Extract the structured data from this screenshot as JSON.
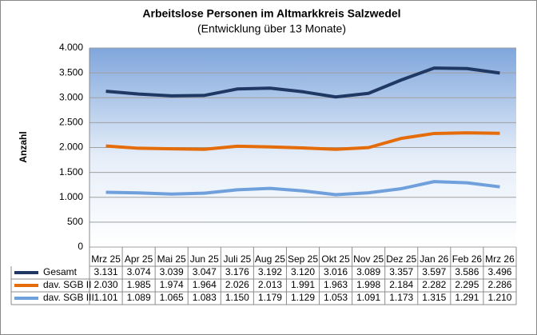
{
  "chart_data": {
    "type": "line",
    "title": "Arbeitslose Personen im Altmarkkreis Salzwedel",
    "subtitle": "(Entwicklung über 13 Monate)",
    "y_label": "Anzahl",
    "categories": [
      "Mrz 25",
      "Apr 25",
      "Mai 25",
      "Jun 25",
      "Juli 25",
      "Aug 25",
      "Sep 25",
      "Okt 25",
      "Nov 25",
      "Dez 25",
      "Jan 26",
      "Feb 26",
      "Mrz 26"
    ],
    "series": [
      {
        "name": "Gesamt",
        "color": "#1f3864",
        "values": [
          3131,
          3074,
          3039,
          3047,
          3176,
          3192,
          3120,
          3016,
          3089,
          3357,
          3597,
          3586,
          3496
        ],
        "value_labels": [
          "3.131",
          "3.074",
          "3.039",
          "3.047",
          "3.176",
          "3.192",
          "3.120",
          "3.016",
          "3.089",
          "3.357",
          "3.597",
          "3.586",
          "3.496"
        ]
      },
      {
        "name": "dav. SGB II",
        "color": "#e46c0a",
        "values": [
          2030,
          1985,
          1974,
          1964,
          2026,
          2013,
          1991,
          1963,
          1998,
          2184,
          2282,
          2295,
          2286
        ],
        "value_labels": [
          "2.030",
          "1.985",
          "1.974",
          "1.964",
          "2.026",
          "2.013",
          "1.991",
          "1.963",
          "1.998",
          "2.184",
          "2.282",
          "2.295",
          "2.286"
        ]
      },
      {
        "name": "dav. SGB III",
        "color": "#6fa0dc",
        "values": [
          1101,
          1089,
          1065,
          1083,
          1150,
          1179,
          1129,
          1053,
          1091,
          1173,
          1315,
          1291,
          1210
        ],
        "value_labels": [
          "1.101",
          "1.089",
          "1.065",
          "1.083",
          "1.150",
          "1.179",
          "1.129",
          "1.053",
          "1.091",
          "1.173",
          "1.315",
          "1.291",
          "1.210"
        ]
      }
    ],
    "ylim": [
      0,
      4000
    ],
    "yticks": [
      0,
      500,
      {
        "value": 1000,
        "label": "1.000"
      },
      {
        "value": 1500,
        "label": "1.500"
      },
      {
        "value": 2000,
        "label": "2.000"
      },
      {
        "value": 2500,
        "label": "2.500"
      },
      {
        "value": 3000,
        "label": "3.000"
      },
      {
        "value": 3500,
        "label": "3.500"
      },
      {
        "value": 4000,
        "label": "4.000"
      }
    ],
    "grid": true
  }
}
